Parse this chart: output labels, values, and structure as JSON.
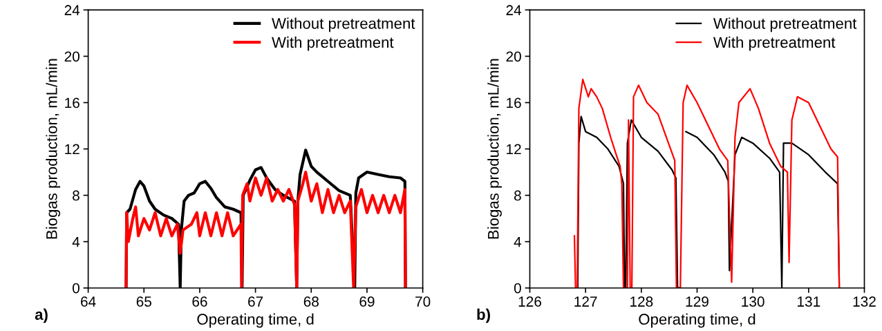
{
  "chart_data": [
    {
      "type": "line",
      "xlabel": "Operating time, d",
      "ylabel": "Biogas production, mL/min",
      "annotations": [
        "a)"
      ],
      "xlim": [
        64,
        70
      ],
      "xticks": [
        64,
        65,
        66,
        67,
        68,
        69,
        70
      ],
      "ylim": [
        0,
        24
      ],
      "yticks": [
        0,
        4,
        8,
        12,
        16,
        20,
        24
      ],
      "legend": "top right",
      "grid": false,
      "line_style": "solid",
      "marker": "none",
      "series": [
        {
          "name": "Without pretreatment",
          "color": "#000000",
          "x": [
            64.68,
            64.69,
            64.75,
            64.85,
            64.93,
            65.0,
            65.1,
            65.2,
            65.35,
            65.5,
            65.62,
            65.65,
            65.67,
            65.72,
            65.8,
            65.9,
            66.0,
            66.1,
            66.2,
            66.3,
            66.45,
            66.6,
            66.74,
            66.76,
            66.78,
            66.9,
            67.0,
            67.1,
            67.2,
            67.35,
            67.5,
            67.7,
            67.74,
            67.76,
            67.8,
            67.9,
            68.0,
            68.1,
            68.3,
            68.5,
            68.7,
            68.78,
            68.8,
            68.85,
            69.0,
            69.2,
            69.4,
            69.6,
            69.68,
            69.69
          ],
          "values": [
            0,
            6.5,
            6.8,
            8.5,
            9.2,
            8.8,
            7.5,
            6.8,
            6.3,
            6.0,
            5.5,
            0,
            5.0,
            7.5,
            8.0,
            8.2,
            9.0,
            9.2,
            8.6,
            7.8,
            7.0,
            6.8,
            6.5,
            0,
            8.0,
            9.3,
            10.2,
            10.4,
            9.5,
            8.5,
            8.0,
            7.5,
            0,
            7.5,
            9.8,
            11.9,
            10.5,
            10.0,
            9.2,
            8.4,
            8.0,
            0,
            8.2,
            9.5,
            10.0,
            9.8,
            9.6,
            9.5,
            9.2,
            0
          ]
        },
        {
          "name": "With pretreatment",
          "color": "#ff0000",
          "x": [
            64.68,
            64.69,
            64.72,
            64.8,
            64.85,
            64.9,
            65.0,
            65.1,
            65.2,
            65.3,
            65.4,
            65.5,
            65.6,
            65.65,
            65.7,
            65.85,
            65.95,
            66.0,
            66.1,
            66.2,
            66.3,
            66.4,
            66.5,
            66.6,
            66.74,
            66.75,
            66.77,
            66.85,
            66.9,
            67.0,
            67.1,
            67.2,
            67.3,
            67.4,
            67.5,
            67.6,
            67.7,
            67.74,
            67.76,
            67.85,
            67.9,
            68.0,
            68.1,
            68.2,
            68.3,
            68.4,
            68.5,
            68.6,
            68.7,
            68.76,
            68.8,
            68.9,
            69.0,
            69.1,
            69.2,
            69.3,
            69.4,
            69.5,
            69.6,
            69.68,
            69.69
          ],
          "values": [
            0,
            6.5,
            4.0,
            6.0,
            7.0,
            4.5,
            6.0,
            5.0,
            6.5,
            4.5,
            6.0,
            4.5,
            5.5,
            3.0,
            5.0,
            5.5,
            6.5,
            4.5,
            6.5,
            4.5,
            6.5,
            4.5,
            6.5,
            4.5,
            5.5,
            0,
            8.0,
            9.0,
            7.5,
            9.5,
            8.0,
            9.5,
            7.5,
            8.5,
            7.5,
            8.5,
            7.2,
            0,
            7.5,
            9.0,
            10.0,
            7.5,
            9.0,
            6.5,
            8.5,
            6.5,
            8.0,
            6.5,
            7.5,
            0,
            7.0,
            8.5,
            6.5,
            8.0,
            6.5,
            8.0,
            6.5,
            8.0,
            6.5,
            8.5,
            0
          ]
        }
      ]
    },
    {
      "type": "line",
      "xlabel": "Operating time, d",
      "ylabel": "Biogas production, mL/min",
      "annotations": [
        "b)"
      ],
      "xlim": [
        126,
        132
      ],
      "xticks": [
        126,
        127,
        128,
        129,
        130,
        131,
        132
      ],
      "ylim": [
        0,
        24
      ],
      "yticks": [
        0,
        4,
        8,
        12,
        16,
        20,
        24
      ],
      "legend": "top right",
      "grid": false,
      "line_style": "solid",
      "marker": "none",
      "series": [
        {
          "name": "Without pretreatment",
          "color": "#000000",
          "x": [
            126.86,
            126.88,
            126.92,
            127.0,
            127.2,
            127.4,
            127.6,
            127.68,
            127.7,
            127.72,
            127.75,
            127.82,
            128.0,
            128.3,
            128.55,
            128.62,
            128.65,
            128.7,
            128.73,
            128.8,
            129.0,
            129.3,
            129.5,
            129.56,
            129.58,
            129.68,
            129.8,
            130.0,
            130.3,
            130.48,
            130.52,
            130.55,
            130.7,
            131.0,
            131.3,
            131.52,
            131.55
          ],
          "values": [
            0,
            12.5,
            14.8,
            13.5,
            13.0,
            12.0,
            10.5,
            9.0,
            0,
            0,
            12.5,
            14.5,
            13.0,
            11.8,
            10.2,
            9.5,
            0,
            0,
            null,
            13.5,
            13.0,
            11.5,
            10.0,
            9.2,
            1.5,
            11.5,
            13.0,
            12.5,
            11.2,
            10.0,
            0,
            12.5,
            12.5,
            11.5,
            10.0,
            9.0,
            0
          ]
        },
        {
          "name": "With pretreatment",
          "color": "#ff0000",
          "x": [
            126.8,
            126.82,
            126.85,
            126.88,
            126.95,
            127.05,
            127.1,
            127.2,
            127.3,
            127.45,
            127.55,
            127.62,
            127.65,
            127.68,
            127.75,
            127.77,
            127.8,
            127.83,
            127.86,
            127.95,
            128.1,
            128.3,
            128.45,
            128.6,
            128.63,
            128.7,
            128.75,
            128.82,
            129.0,
            129.2,
            129.4,
            129.55,
            129.62,
            129.68,
            129.75,
            129.95,
            130.1,
            130.3,
            130.5,
            130.62,
            130.65,
            130.7,
            130.8,
            131.0,
            131.2,
            131.4,
            131.52,
            131.55
          ],
          "values": [
            4.5,
            0,
            0,
            15.5,
            18.0,
            16.5,
            17.2,
            16.5,
            15.5,
            13.0,
            11.5,
            10.5,
            9.0,
            0,
            0,
            14.5,
            0,
            0,
            16.5,
            17.5,
            16.0,
            15.0,
            13.0,
            11.0,
            0,
            0,
            16.0,
            17.5,
            16.0,
            14.0,
            12.0,
            11.0,
            0.5,
            13.0,
            16.0,
            17.2,
            15.5,
            12.5,
            10.5,
            10.0,
            2.2,
            14.5,
            16.5,
            16.0,
            14.0,
            12.0,
            11.3,
            0
          ]
        }
      ]
    }
  ]
}
